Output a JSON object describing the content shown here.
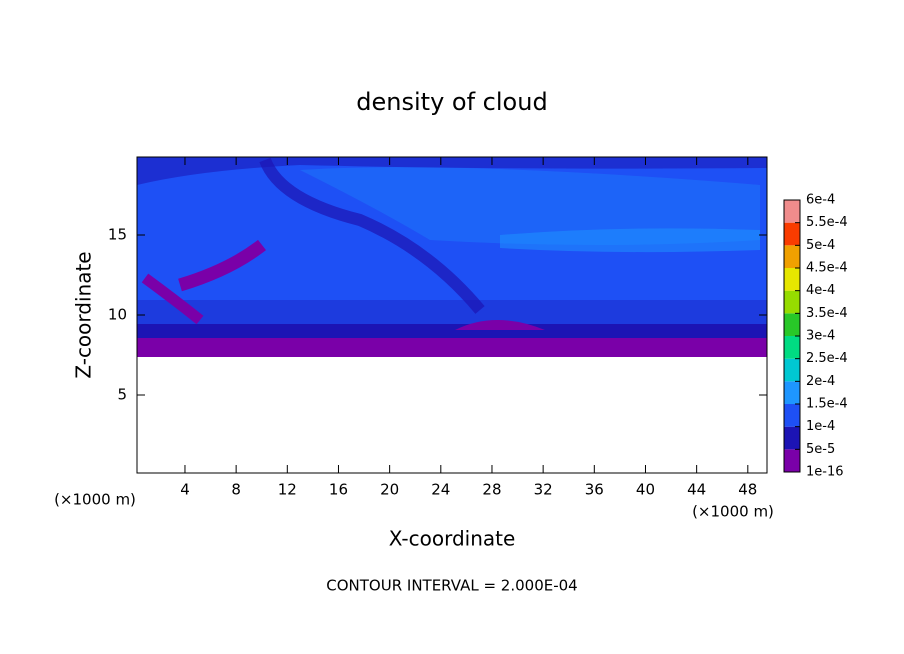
{
  "chart_data": {
    "type": "contour",
    "title": "density of cloud",
    "x_label": "X-coordinate",
    "y_label": "Z-coordinate",
    "x_unit": "(×1000 m)",
    "y_unit": "(×1000 m)",
    "footer": "CONTOUR INTERVAL = 2.000E-04",
    "xlim": [
      0.25,
      49.5
    ],
    "xticks": [
      4,
      8,
      12,
      16,
      20,
      24,
      28,
      32,
      36,
      40,
      44,
      48
    ],
    "ylim": [
      0.125,
      19.875
    ],
    "yticks": [
      5,
      10,
      15
    ],
    "levels": [
      {
        "value": 1e-16,
        "label": "1e-16"
      },
      {
        "value": 5e-05,
        "label": "5e-5"
      },
      {
        "value": 0.0001,
        "label": "1e-4"
      },
      {
        "value": 0.00015,
        "label": "1.5e-4"
      },
      {
        "value": 0.0002,
        "label": "2e-4"
      },
      {
        "value": 0.00025,
        "label": "2.5e-4"
      },
      {
        "value": 0.0003,
        "label": "3e-4"
      },
      {
        "value": 0.00035,
        "label": "3.5e-4"
      },
      {
        "value": 0.0004,
        "label": "4e-4"
      },
      {
        "value": 0.00045,
        "label": "4.5e-4"
      },
      {
        "value": 0.0005,
        "label": "5e-4"
      },
      {
        "value": 0.00055,
        "label": "5.5e-4"
      },
      {
        "value": 0.0006,
        "label": "6e-4"
      }
    ],
    "colors": [
      "#7a00a8",
      "#1c14b4",
      "#1e50f5",
      "#1e96ff",
      "#00c8d2",
      "#00dc82",
      "#28c828",
      "#96dc00",
      "#e6e600",
      "#f0a000",
      "#fa3c00",
      "#f08c8c"
    ]
  }
}
